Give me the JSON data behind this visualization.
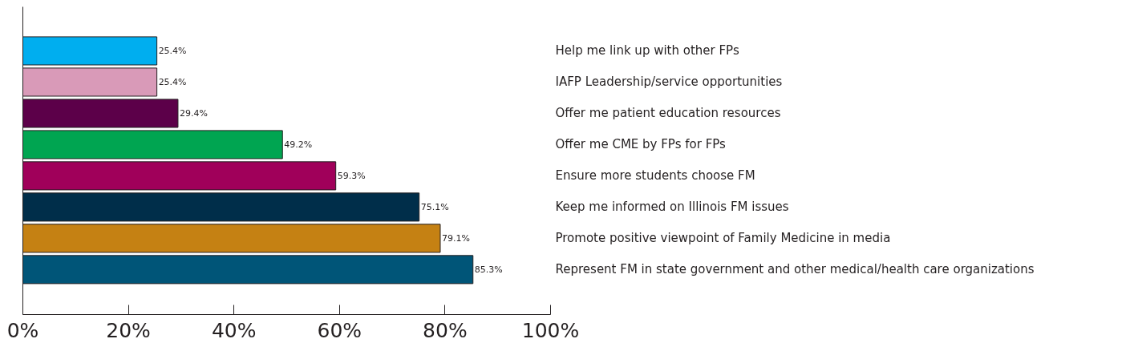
{
  "chart_data": {
    "type": "bar",
    "orientation": "horizontal",
    "categories": [
      "Help me link up with other FPs",
      "IAFP Leadership/service opportunities",
      "Offer me patient education resources",
      "Offer me CME by FPs for FPs",
      "Ensure more students choose FM",
      "Keep me informed on Illinois FM issues",
      "Promote positive viewpoint of Family Medicine in media",
      "Represent FM in state government and other medical/health care organizations"
    ],
    "values": [
      25.4,
      25.4,
      29.4,
      49.2,
      59.3,
      75.1,
      79.1,
      85.3
    ],
    "colors": [
      "#00aeef",
      "#d99ab8",
      "#5c0049",
      "#00a551",
      "#a0005a",
      "#002e4a",
      "#c58113",
      "#005578"
    ],
    "value_labels": [
      "25.4%",
      "25.4%",
      "29.4%",
      "49.2%",
      "59.3%",
      "75.1%",
      "79.1%",
      "85.3%"
    ],
    "xlim": [
      0,
      100
    ],
    "xticks": [
      {
        "value": 0,
        "label": "0%"
      },
      {
        "value": 20,
        "label": "20%"
      },
      {
        "value": 40,
        "label": "40%"
      },
      {
        "value": 60,
        "label": "60%"
      },
      {
        "value": 80,
        "label": "80%"
      },
      {
        "value": 100,
        "label": "100%"
      }
    ],
    "grid": false
  }
}
